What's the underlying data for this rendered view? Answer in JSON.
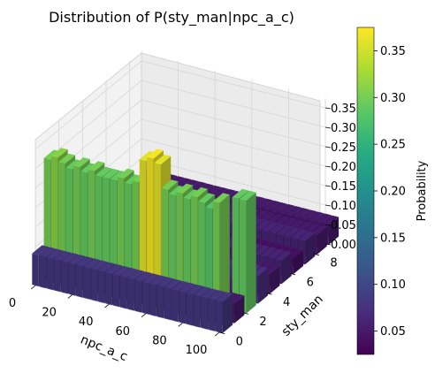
{
  "chart_data": {
    "type": "bar3d",
    "title": "Distribution of P(sty_man|npc_a_c)",
    "xlabel": "npc_a_c",
    "ylabel": "sty_man",
    "zlabel": "",
    "xlim": [
      0,
      100
    ],
    "ylim": [
      0,
      9
    ],
    "zlim": [
      0,
      0.375
    ],
    "x_ticks": [
      "0",
      "20",
      "40",
      "60",
      "80",
      "100"
    ],
    "y_ticks": [
      "0",
      "2",
      "4",
      "6",
      "8"
    ],
    "z_ticks": [
      "0.00",
      "0.05",
      "0.10",
      "0.15",
      "0.20",
      "0.25",
      "0.30",
      "0.35"
    ],
    "x": [
      0,
      4,
      8,
      12,
      16,
      20,
      24,
      28,
      32,
      36,
      40,
      44,
      48,
      52,
      56,
      60,
      64,
      68,
      72,
      76,
      80,
      84,
      88,
      92,
      96,
      100
    ],
    "series": [
      {
        "values": [
          0.08,
          0.08,
          0.08,
          0.08,
          0.08,
          0.08,
          0.08,
          0.08,
          0.08,
          0.08,
          0.08,
          0.08,
          0.08,
          0.08,
          0.08,
          0.08,
          0.08,
          0.08,
          0.08,
          0.08,
          0.08,
          0.08,
          0.08,
          0.08,
          0.08,
          0.08
        ]
      },
      {
        "values": [
          0.3,
          0.31,
          0.3,
          0.29,
          0.3,
          0.29,
          0.3,
          0.29,
          0.29,
          0.29,
          0.3,
          0.29,
          0.3,
          0.36,
          0.37,
          0.36,
          0.3,
          0.29,
          0.3,
          0.29,
          0.3,
          0.29,
          0.28,
          0.3,
          0.05,
          0.05
        ]
      },
      {
        "values": [
          0.05,
          0.05,
          0.05,
          0.05,
          0.05,
          0.05,
          0.05,
          0.05,
          0.05,
          0.05,
          0.05,
          0.05,
          0.05,
          0.05,
          0.05,
          0.05,
          0.05,
          0.05,
          0.05,
          0.05,
          0.05,
          0.05,
          0.05,
          0.05,
          0.29,
          0.29
        ]
      },
      {
        "values": [
          0.07,
          0.07,
          0.07,
          0.07,
          0.07,
          0.07,
          0.07,
          0.07,
          0.07,
          0.07,
          0.07,
          0.07,
          0.07,
          0.07,
          0.07,
          0.07,
          0.07,
          0.07,
          0.07,
          0.07,
          0.07,
          0.07,
          0.07,
          0.07,
          0.07,
          0.07
        ]
      },
      {
        "values": [
          0.05,
          0.05,
          0.05,
          0.05,
          0.05,
          0.05,
          0.05,
          0.05,
          0.05,
          0.05,
          0.05,
          0.05,
          0.05,
          0.05,
          0.05,
          0.05,
          0.05,
          0.05,
          0.05,
          0.05,
          0.05,
          0.05,
          0.05,
          0.05,
          0.05,
          0.05
        ]
      },
      {
        "values": [
          0.06,
          0.06,
          0.06,
          0.06,
          0.06,
          0.06,
          0.06,
          0.06,
          0.06,
          0.06,
          0.06,
          0.06,
          0.06,
          0.06,
          0.06,
          0.06,
          0.06,
          0.06,
          0.06,
          0.06,
          0.06,
          0.06,
          0.06,
          0.06,
          0.06,
          0.06
        ]
      },
      {
        "values": [
          0.04,
          0.04,
          0.04,
          0.04,
          0.04,
          0.04,
          0.04,
          0.04,
          0.04,
          0.04,
          0.04,
          0.04,
          0.04,
          0.04,
          0.04,
          0.04,
          0.04,
          0.04,
          0.04,
          0.04,
          0.04,
          0.04,
          0.04,
          0.04,
          0.04,
          0.04
        ]
      },
      {
        "values": [
          0.06,
          0.06,
          0.06,
          0.06,
          0.06,
          0.06,
          0.06,
          0.06,
          0.06,
          0.06,
          0.06,
          0.06,
          0.06,
          0.06,
          0.06,
          0.06,
          0.06,
          0.06,
          0.06,
          0.06,
          0.06,
          0.06,
          0.06,
          0.06,
          0.06,
          0.06
        ]
      },
      {
        "values": [
          0.05,
          0.05,
          0.05,
          0.05,
          0.05,
          0.05,
          0.05,
          0.05,
          0.05,
          0.05,
          0.05,
          0.05,
          0.05,
          0.05,
          0.05,
          0.05,
          0.05,
          0.05,
          0.05,
          0.05,
          0.05,
          0.05,
          0.05,
          0.05,
          0.05,
          0.05
        ]
      },
      {
        "values": [
          0.05,
          0.05,
          0.05,
          0.05,
          0.05,
          0.05,
          0.05,
          0.05,
          0.05,
          0.05,
          0.05,
          0.05,
          0.05,
          0.05,
          0.05,
          0.05,
          0.05,
          0.05,
          0.05,
          0.05,
          0.05,
          0.05,
          0.05,
          0.05,
          0.05,
          0.05
        ]
      }
    ],
    "colormap": "viridis",
    "colorbar": {
      "label": "Probability",
      "range": [
        0.025,
        0.375
      ],
      "ticks": [
        "0.05",
        "0.10",
        "0.15",
        "0.20",
        "0.25",
        "0.30",
        "0.35"
      ],
      "placement": "right"
    },
    "grid": true
  }
}
